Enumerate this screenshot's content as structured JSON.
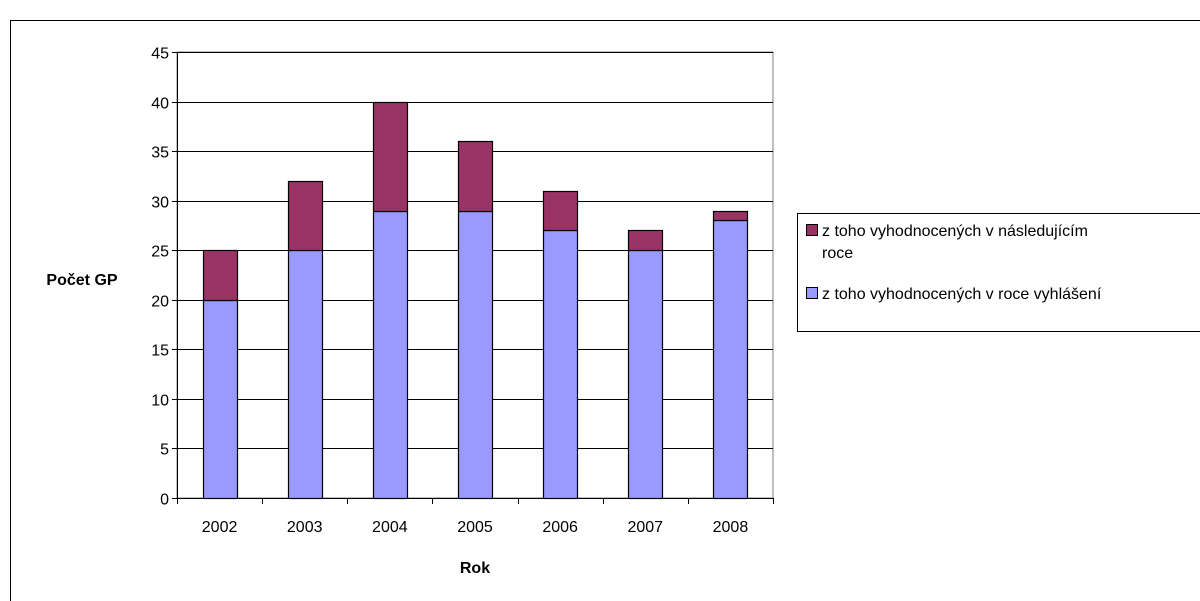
{
  "chart_data": {
    "type": "bar",
    "stacked": true,
    "title": "",
    "xlabel": "Rok",
    "ylabel": "Počet GP",
    "ylim": [
      0,
      45
    ],
    "ytick_step": 5,
    "grid": true,
    "legend_position": "right",
    "categories": [
      "2002",
      "2003",
      "2004",
      "2005",
      "2006",
      "2007",
      "2008"
    ],
    "series": [
      {
        "name": "z toho vyhodnocených v roce vyhlášení",
        "color": "#9999ff",
        "values": [
          20,
          25,
          29,
          29,
          27,
          25,
          28
        ]
      },
      {
        "name": "z toho vyhodnocených v následujícím roce",
        "color": "#993366",
        "values": [
          5,
          7,
          11,
          7,
          4,
          2,
          1
        ]
      }
    ],
    "legend_order": [
      1,
      0
    ],
    "legend_lines": [
      [
        "z toho vyhodnocených v následujícím",
        "roce"
      ],
      [
        "z toho vyhodnocených v roce vyhlášení"
      ]
    ]
  },
  "colors": {
    "grid": "#000000",
    "plot_border": "#808080",
    "frame": "#000000",
    "background": "#ffffff"
  }
}
